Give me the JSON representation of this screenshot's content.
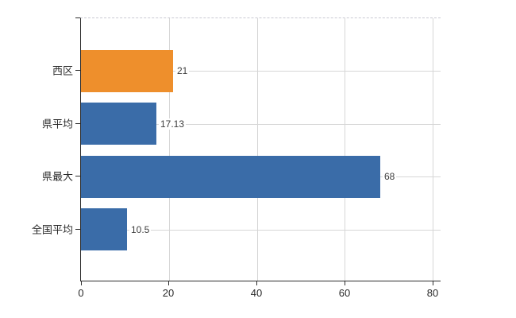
{
  "chart_data": {
    "type": "bar",
    "orientation": "horizontal",
    "title": "",
    "xlabel": "",
    "ylabel": "",
    "categories": [
      "西区",
      "県平均",
      "県最大",
      "全国平均"
    ],
    "values": [
      21,
      17.13,
      68,
      10.5
    ],
    "value_labels": [
      "21",
      "17.13",
      "68",
      "10.5"
    ],
    "bar_colors": [
      "#EE8F2C",
      "#3A6CA8",
      "#3A6CA8",
      "#3A6CA8"
    ],
    "highlighted_category": "西区",
    "accent_color": "#EE8F2C",
    "default_bar_color": "#3A6CA8",
    "xticks": [
      "0",
      "20",
      "40",
      "60",
      "80"
    ],
    "xtick_values": [
      0,
      20,
      40,
      60,
      80
    ],
    "xlim": [
      0,
      81.8
    ],
    "grid": true,
    "legend": false
  }
}
